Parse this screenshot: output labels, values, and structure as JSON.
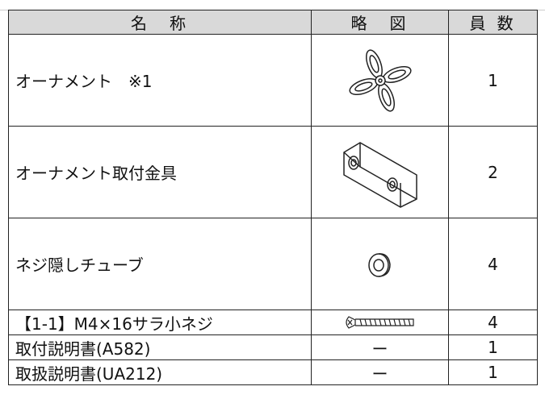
{
  "table": {
    "header": [
      "名　称",
      "略　図",
      "員 数"
    ],
    "rows": [
      {
        "name": "オーナメント　※1",
        "count": "1"
      },
      {
        "name": "オーナメント取付金具",
        "count": "2"
      },
      {
        "name": "ネジ隠しチューブ",
        "count": "4"
      },
      {
        "name": "【1-1】M4×16サラ小ネジ",
        "count": "4"
      },
      {
        "name": "取付説明書(A582)",
        "sketch": "ー",
        "count": "1"
      },
      {
        "name": "取扱説明書(UA212)",
        "sketch": "ー",
        "count": "1"
      }
    ]
  }
}
